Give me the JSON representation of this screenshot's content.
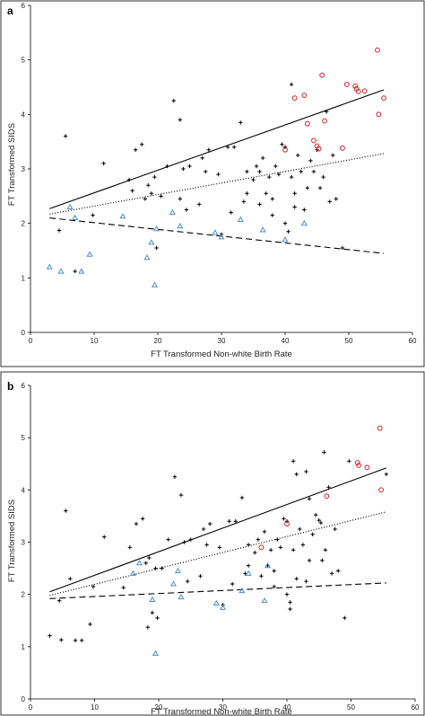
{
  "chart_data": [
    {
      "panel_label": "a",
      "type": "scatter",
      "xlabel": "FT Transformed  Non-white Birth Rate",
      "ylabel": "FT Transformed  SIDS",
      "xlim": [
        0,
        60
      ],
      "ylim": [
        0,
        6
      ],
      "xticks": [
        "0",
        "10",
        "20",
        "30",
        "40",
        "50",
        "60"
      ],
      "yticks": [
        "0",
        "1",
        "2",
        "3",
        "4",
        "5",
        "6"
      ],
      "grid": false,
      "series": [
        {
          "marker": "plus",
          "color": "#000000",
          "points": [
            [
              4.5,
              1.87
            ],
            [
              5.5,
              3.6
            ],
            [
              7,
              1.12
            ],
            [
              9.8,
              2.15
            ],
            [
              11.5,
              3.1
            ],
            [
              16.5,
              3.35
            ],
            [
              17.5,
              3.45
            ],
            [
              15.5,
              2.8
            ],
            [
              16,
              2.6
            ],
            [
              18,
              2.45
            ],
            [
              18.5,
              2.7
            ],
            [
              19,
              2.55
            ],
            [
              19.5,
              2.85
            ],
            [
              19.8,
              1.55
            ],
            [
              20.5,
              2.5
            ],
            [
              21.5,
              3.05
            ],
            [
              22.5,
              4.25
            ],
            [
              23.5,
              3.9
            ],
            [
              23.5,
              2.45
            ],
            [
              24,
              3.0
            ],
            [
              24.5,
              2.25
            ],
            [
              25,
              3.05
            ],
            [
              26.5,
              2.35
            ],
            [
              27,
              3.2
            ],
            [
              27.5,
              2.95
            ],
            [
              28,
              3.35
            ],
            [
              29.5,
              2.9
            ],
            [
              30,
              1.8
            ],
            [
              31,
              3.4
            ],
            [
              31.5,
              2.2
            ],
            [
              32,
              3.4
            ],
            [
              33,
              3.85
            ],
            [
              33.5,
              2.4
            ],
            [
              34,
              2.95
            ],
            [
              34,
              2.55
            ],
            [
              35,
              2.8
            ],
            [
              35.5,
              3.05
            ],
            [
              36,
              2.35
            ],
            [
              36,
              2.95
            ],
            [
              36.5,
              3.2
            ],
            [
              37,
              2.55
            ],
            [
              37.5,
              2.85
            ],
            [
              38,
              2.45
            ],
            [
              38,
              2.15
            ],
            [
              38.5,
              3.05
            ],
            [
              39,
              2.9
            ],
            [
              39.5,
              3.45
            ],
            [
              40,
              3.4
            ],
            [
              40,
              2.0
            ],
            [
              40.5,
              1.85
            ],
            [
              41,
              2.85
            ],
            [
              41.5,
              2.55
            ],
            [
              41,
              4.55
            ],
            [
              41.5,
              2.3
            ],
            [
              42,
              3.25
            ],
            [
              42.5,
              2.95
            ],
            [
              43,
              2.25
            ],
            [
              43.5,
              2.65
            ],
            [
              44,
              3.15
            ],
            [
              44.5,
              2.95
            ],
            [
              45,
              3.35
            ],
            [
              45.5,
              2.65
            ],
            [
              46,
              2.85
            ],
            [
              46.5,
              4.05
            ],
            [
              47,
              2.4
            ],
            [
              47.5,
              3.25
            ],
            [
              48,
              2.45
            ],
            [
              49,
              1.55
            ]
          ]
        },
        {
          "marker": "triangle",
          "color": "#4a90c8",
          "points": [
            [
              3,
              1.2
            ],
            [
              4.8,
              1.12
            ],
            [
              6.2,
              2.3
            ],
            [
              7,
              2.1
            ],
            [
              8,
              1.12
            ],
            [
              9.3,
              1.43
            ],
            [
              14.5,
              2.13
            ],
            [
              18.3,
              1.37
            ],
            [
              19,
              1.65
            ],
            [
              19.5,
              0.87
            ],
            [
              19.8,
              1.9
            ],
            [
              22.3,
              2.2
            ],
            [
              23.5,
              1.95
            ],
            [
              29,
              1.83
            ],
            [
              30,
              1.75
            ],
            [
              33,
              2.07
            ],
            [
              36.5,
              1.88
            ],
            [
              40,
              1.7
            ],
            [
              43,
              2.0
            ]
          ]
        },
        {
          "marker": "circle",
          "color": "#cc2222",
          "points": [
            [
              40,
              3.35
            ],
            [
              41.5,
              4.3
            ],
            [
              43,
              4.35
            ],
            [
              43.5,
              3.83
            ],
            [
              44.5,
              3.52
            ],
            [
              45,
              3.42
            ],
            [
              45.3,
              3.37
            ],
            [
              45.8,
              4.72
            ],
            [
              46.2,
              3.88
            ],
            [
              49,
              3.38
            ],
            [
              49.7,
              4.55
            ],
            [
              51,
              4.52
            ],
            [
              51.2,
              4.47
            ],
            [
              51.5,
              4.42
            ],
            [
              52.5,
              4.43
            ],
            [
              54.5,
              5.18
            ],
            [
              54.7,
              4.0
            ],
            [
              55.5,
              4.3
            ]
          ]
        }
      ],
      "fit_lines": [
        {
          "style": "solid",
          "x": [
            3,
            55.5
          ],
          "y": [
            2.27,
            4.45
          ]
        },
        {
          "style": "dotted",
          "x": [
            3,
            55.5
          ],
          "y": [
            2.17,
            3.28
          ]
        },
        {
          "style": "dashed",
          "x": [
            3,
            55.5
          ],
          "y": [
            2.1,
            1.45
          ]
        }
      ]
    },
    {
      "panel_label": "b",
      "type": "scatter",
      "xlabel": "FT Transformed  Non-white Birth Rate",
      "ylabel": "FT Transformed  SIDS",
      "xlim": [
        0,
        60
      ],
      "ylim": [
        0,
        6
      ],
      "xticks": [
        "0",
        "10",
        "20",
        "30",
        "40",
        "50",
        "60"
      ],
      "yticks": [
        "0",
        "1",
        "2",
        "3",
        "4",
        "5",
        "6"
      ],
      "grid": false,
      "series": [
        {
          "marker": "plus",
          "color": "#000000",
          "points": [
            [
              3,
              1.21
            ],
            [
              4.5,
              1.88
            ],
            [
              4.8,
              1.13
            ],
            [
              5.5,
              3.6
            ],
            [
              6.2,
              2.3
            ],
            [
              7,
              1.12
            ],
            [
              8,
              1.12
            ],
            [
              9.3,
              1.43
            ],
            [
              9.8,
              2.15
            ],
            [
              11.5,
              3.1
            ],
            [
              14.5,
              2.13
            ],
            [
              15.5,
              2.9
            ],
            [
              16.5,
              3.35
            ],
            [
              17.5,
              3.45
            ],
            [
              18,
              2.6
            ],
            [
              18.3,
              1.37
            ],
            [
              18.5,
              2.7
            ],
            [
              19,
              1.65
            ],
            [
              19.5,
              2.5
            ],
            [
              19.8,
              1.55
            ],
            [
              20.5,
              2.5
            ],
            [
              21.5,
              3.05
            ],
            [
              22.5,
              4.25
            ],
            [
              23.5,
              3.9
            ],
            [
              24,
              3.0
            ],
            [
              24.5,
              2.25
            ],
            [
              25,
              3.05
            ],
            [
              26.5,
              2.35
            ],
            [
              27,
              3.25
            ],
            [
              27.5,
              2.95
            ],
            [
              28,
              3.35
            ],
            [
              29.5,
              2.9
            ],
            [
              30,
              1.8
            ],
            [
              31,
              3.4
            ],
            [
              31.5,
              2.2
            ],
            [
              32,
              3.4
            ],
            [
              33,
              3.85
            ],
            [
              33.5,
              2.4
            ],
            [
              34,
              2.95
            ],
            [
              34,
              2.55
            ],
            [
              35,
              2.8
            ],
            [
              35.5,
              3.05
            ],
            [
              36,
              2.35
            ],
            [
              36.5,
              3.2
            ],
            [
              37,
              2.55
            ],
            [
              37.5,
              2.85
            ],
            [
              38,
              2.45
            ],
            [
              38,
              2.15
            ],
            [
              38.5,
              3.05
            ],
            [
              39,
              2.9
            ],
            [
              39.5,
              3.45
            ],
            [
              40,
              3.4
            ],
            [
              40,
              2.0
            ],
            [
              40.5,
              1.85
            ],
            [
              40.5,
              1.72
            ],
            [
              41,
              2.85
            ],
            [
              41,
              4.55
            ],
            [
              41.5,
              2.3
            ],
            [
              41.5,
              4.3
            ],
            [
              42,
              3.25
            ],
            [
              42.5,
              2.95
            ],
            [
              43,
              2.25
            ],
            [
              43,
              4.35
            ],
            [
              43.5,
              2.65
            ],
            [
              43.5,
              3.83
            ],
            [
              44,
              3.15
            ],
            [
              44.5,
              3.52
            ],
            [
              45,
              3.42
            ],
            [
              45.3,
              3.37
            ],
            [
              45.5,
              2.65
            ],
            [
              45.8,
              4.72
            ],
            [
              46,
              2.85
            ],
            [
              46.5,
              4.05
            ],
            [
              47,
              2.4
            ],
            [
              47.5,
              3.25
            ],
            [
              48,
              2.45
            ],
            [
              49,
              1.55
            ],
            [
              49.7,
              4.55
            ],
            [
              55.5,
              4.3
            ]
          ]
        },
        {
          "marker": "triangle",
          "color": "#4a90c8",
          "points": [
            [
              16,
              2.4
            ],
            [
              17,
              2.6
            ],
            [
              19,
              1.9
            ],
            [
              19.5,
              0.87
            ],
            [
              22.3,
              2.2
            ],
            [
              23,
              2.45
            ],
            [
              23.5,
              1.95
            ],
            [
              29,
              1.83
            ],
            [
              30,
              1.75
            ],
            [
              33,
              2.07
            ],
            [
              34,
              2.4
            ],
            [
              36.5,
              1.88
            ],
            [
              37,
              2.55
            ]
          ]
        },
        {
          "marker": "circle",
          "color": "#cc2222",
          "points": [
            [
              36,
              2.9
            ],
            [
              40,
              3.35
            ],
            [
              46.2,
              3.88
            ],
            [
              51,
              4.52
            ],
            [
              51.2,
              4.47
            ],
            [
              52.5,
              4.43
            ],
            [
              54.5,
              5.18
            ],
            [
              54.7,
              4.0
            ]
          ]
        }
      ],
      "fit_lines": [
        {
          "style": "solid",
          "x": [
            3,
            55.5
          ],
          "y": [
            2.05,
            4.42
          ]
        },
        {
          "style": "dotted",
          "x": [
            3,
            55.5
          ],
          "y": [
            1.98,
            3.58
          ]
        },
        {
          "style": "dashed",
          "x": [
            3,
            55.5
          ],
          "y": [
            1.92,
            2.22
          ]
        }
      ]
    }
  ]
}
